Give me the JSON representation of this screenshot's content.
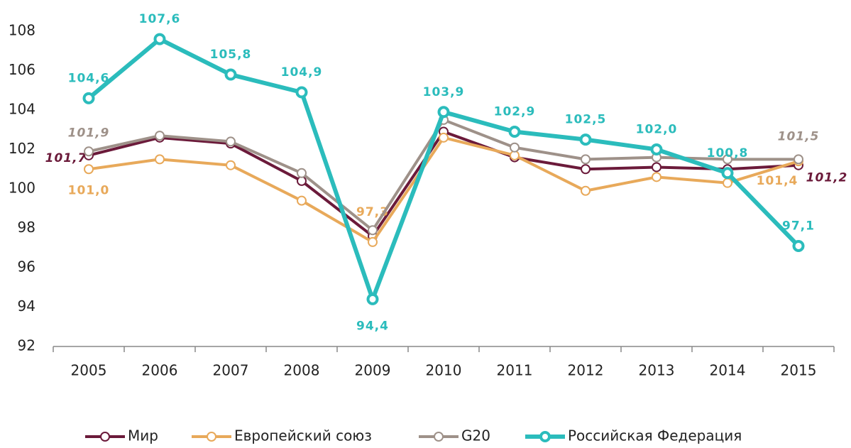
{
  "chart_data": {
    "type": "line",
    "categories": [
      "2005",
      "2006",
      "2007",
      "2008",
      "2009",
      "2010",
      "2011",
      "2012",
      "2013",
      "2014",
      "2015"
    ],
    "ylim": [
      92,
      108
    ],
    "yticks": [
      92,
      94,
      96,
      98,
      100,
      102,
      104,
      106,
      108
    ],
    "series": [
      {
        "name": "Мир",
        "color": "#6b1a3a",
        "values": [
          101.7,
          102.6,
          102.3,
          100.4,
          97.6,
          102.9,
          101.6,
          101.0,
          101.1,
          101.0,
          101.2
        ],
        "value_labels": [
          "101,7",
          null,
          null,
          null,
          null,
          null,
          null,
          null,
          null,
          null,
          "101,2"
        ]
      },
      {
        "name": "Европейский союз",
        "color": "#e8a95a",
        "values": [
          101.0,
          101.5,
          101.2,
          99.4,
          97.3,
          102.6,
          101.7,
          99.9,
          100.6,
          100.3,
          101.4
        ],
        "value_labels": [
          "101,0",
          null,
          null,
          null,
          "97,3",
          null,
          null,
          null,
          null,
          null,
          "101,4"
        ]
      },
      {
        "name": "G20",
        "color": "#9e9189",
        "values": [
          101.9,
          102.7,
          102.4,
          100.8,
          97.9,
          103.5,
          102.1,
          101.5,
          101.6,
          101.5,
          101.5
        ],
        "value_labels": [
          "101,9",
          null,
          null,
          null,
          null,
          null,
          null,
          null,
          null,
          null,
          "101,5"
        ]
      },
      {
        "name": "Российская Федерация",
        "color": "#2bbcbc",
        "values": [
          104.6,
          107.6,
          105.8,
          104.9,
          94.4,
          103.9,
          102.9,
          102.5,
          102.0,
          100.8,
          97.1
        ],
        "value_labels": [
          "104,6",
          "107,6",
          "105,8",
          "104,9",
          "94,4",
          "103,9",
          "102,9",
          "102,5",
          "102,0",
          "100,8",
          "97,1"
        ]
      }
    ]
  }
}
